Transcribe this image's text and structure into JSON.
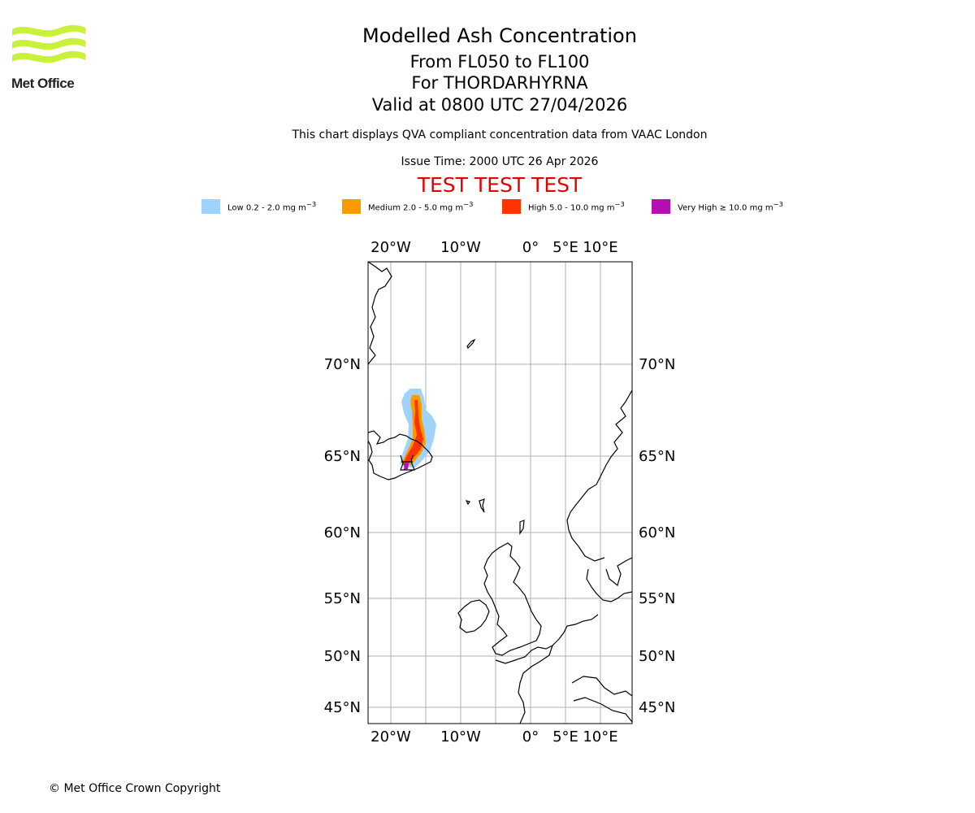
{
  "header": {
    "title": "Modelled Ash Concentration",
    "flight_levels": "From FL050 to FL100",
    "volcano": "For THORDARHYRNA",
    "valid_time": "Valid at 0800 UTC 27/04/2026",
    "note": "This chart displays QVA compliant concentration data from VAAC London",
    "issue_time": "Issue Time: 2000 UTC 26 Apr 2026",
    "test_banner": "TEST TEST TEST"
  },
  "logo": {
    "text": "Met Office",
    "color": "#c8f23a"
  },
  "legend": [
    {
      "label": "Low 0.2 - 2.0 mg m",
      "unit_sup": "−3",
      "color": "#9fd3fb"
    },
    {
      "label": "Medium 2.0 - 5.0 mg m",
      "unit_sup": "−3",
      "color": "#ff9900"
    },
    {
      "label": "High 5.0 - 10.0 mg m",
      "unit_sup": "−3",
      "color": "#ff3300"
    },
    {
      "label": "Very High ≥ 10.0 mg m",
      "unit_sup": "−3",
      "color": "#b30fb3"
    }
  ],
  "map": {
    "lon_labels": [
      "20°W",
      "10°W",
      "0°",
      "5°E",
      "10°E"
    ],
    "lat_labels": [
      "70°N",
      "65°N",
      "60°N",
      "55°N",
      "50°N",
      "45°N"
    ]
  },
  "footer": {
    "copyright": "© Met Office Crown Copyright"
  }
}
